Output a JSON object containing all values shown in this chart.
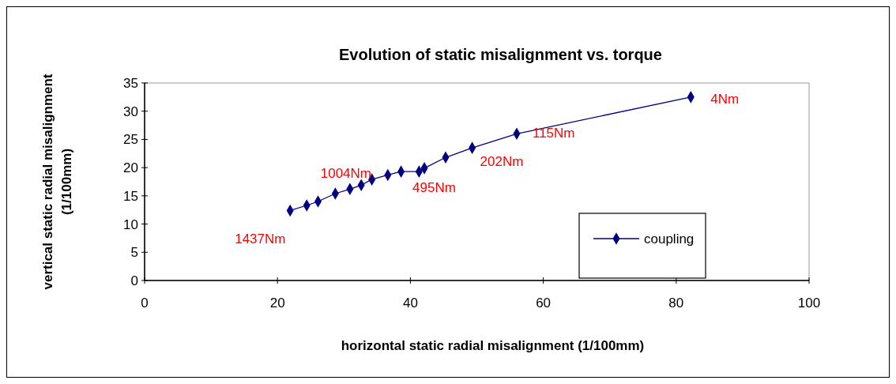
{
  "chart_data": {
    "type": "line",
    "title": "Evolution of static misalignment vs. torque",
    "xlabel": "horizontal static radial misalignment (1/100mm)",
    "ylabel": "vertical static radial misalignment (1/100mm)",
    "x": [
      21.9,
      24.4,
      26.1,
      28.7,
      30.9,
      32.6,
      34.2,
      36.6,
      38.6,
      41.3,
      42.1,
      45.3,
      49.3,
      56.0,
      82.2
    ],
    "series": [
      {
        "name": "coupling",
        "color": "#000080",
        "values": [
          12.4,
          13.3,
          14.0,
          15.4,
          16.2,
          16.9,
          17.9,
          18.7,
          19.3,
          19.3,
          19.9,
          21.8,
          23.5,
          26.0,
          32.5
        ]
      }
    ],
    "annotations": [
      {
        "text": "1437Nm",
        "x": 21.9,
        "y": 12.4
      },
      {
        "text": "1004Nm",
        "x": 30.9,
        "y": 16.2
      },
      {
        "text": "495Nm",
        "x": 42.1,
        "y": 19.9
      },
      {
        "text": "202Nm",
        "x": 49.3,
        "y": 23.5
      },
      {
        "text": "115Nm",
        "x": 56.0,
        "y": 26.0
      },
      {
        "text": "4Nm",
        "x": 82.2,
        "y": 32.5
      }
    ],
    "xlim": [
      0,
      100
    ],
    "xticks": [
      0,
      20,
      40,
      60,
      80,
      100
    ],
    "ylim": [
      0,
      35
    ],
    "yticks": [
      0,
      5,
      10,
      15,
      20,
      25,
      30,
      35
    ],
    "grid": false,
    "legend": "bottom right",
    "marker": "diamond",
    "line_style": "solid"
  }
}
